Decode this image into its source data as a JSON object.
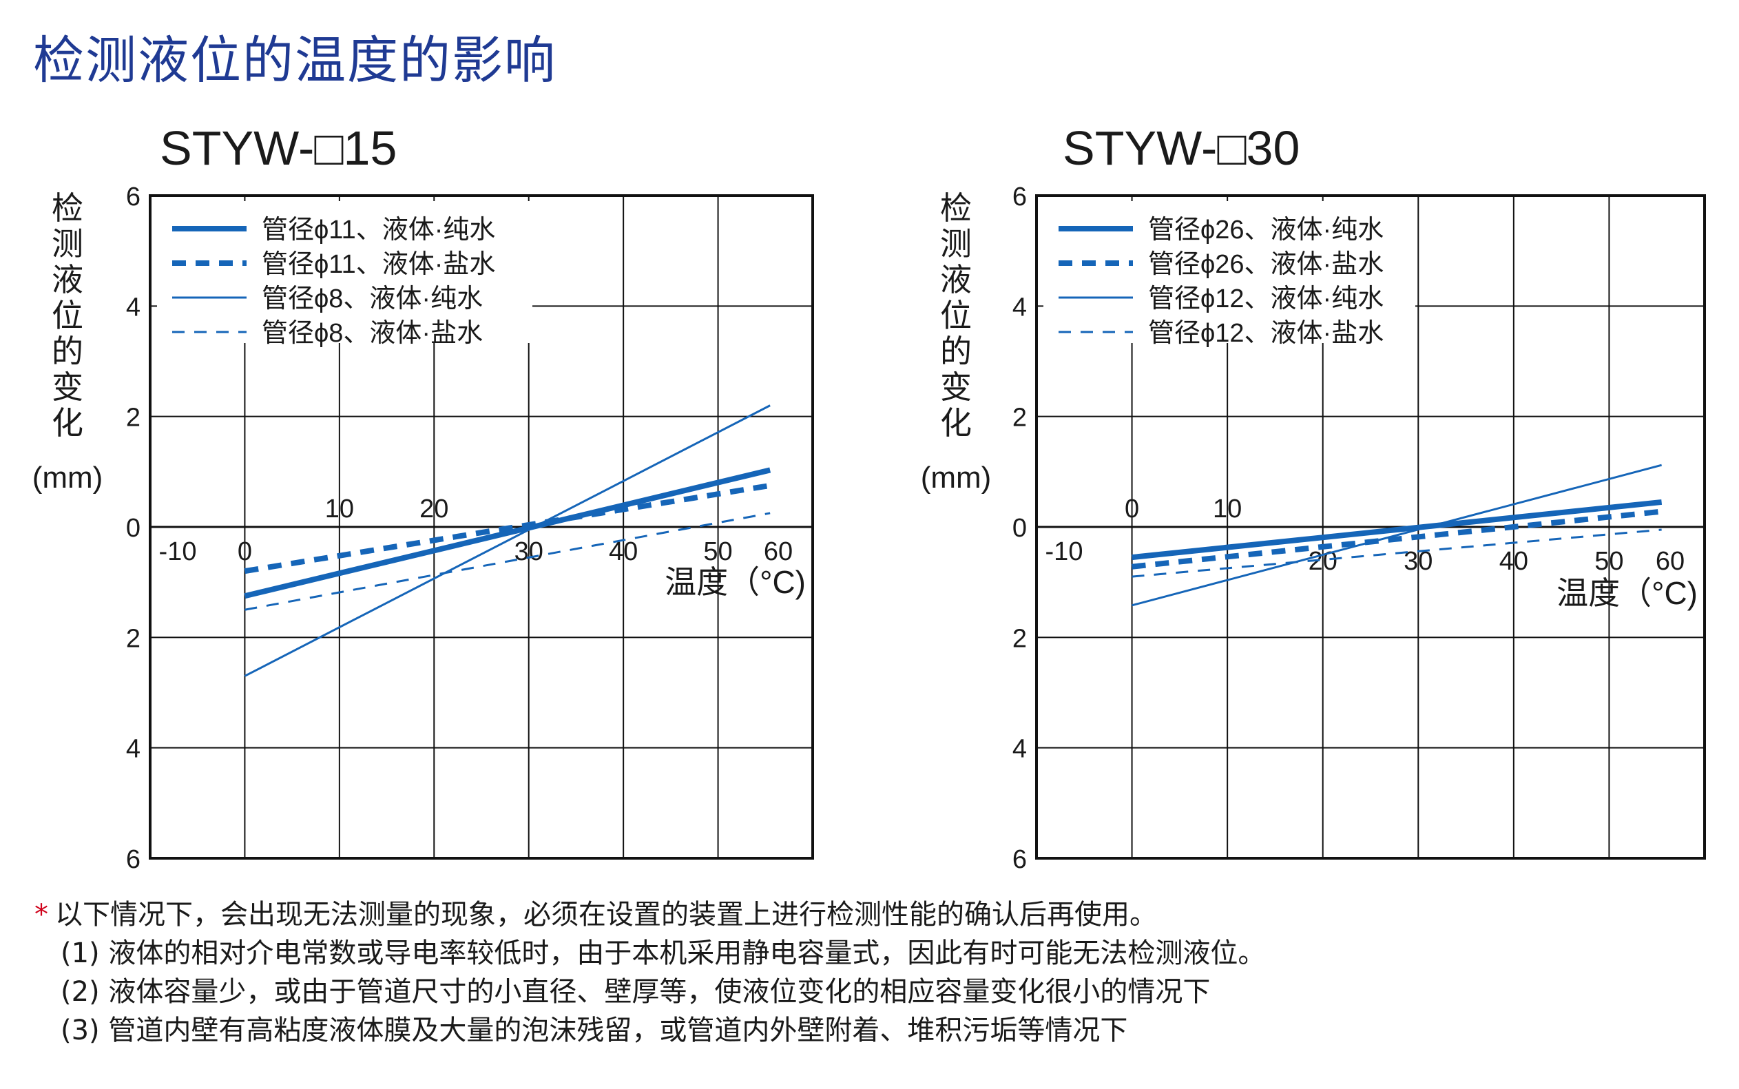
{
  "page_title": "检测液位的温度的影响",
  "chart_data": [
    {
      "type": "line",
      "title": "STYW-□15",
      "ylabel_chars": [
        "检",
        "测",
        "液",
        "位",
        "的",
        "变",
        "化"
      ],
      "yunit": "(mm)",
      "xlabel": "温度（°C)",
      "xlim": [
        -10,
        60
      ],
      "ylim": [
        -6,
        6
      ],
      "y_ticks": [
        "6",
        "4",
        "2",
        "0",
        "2",
        "4",
        "6"
      ],
      "x_ticks_above": [
        "10",
        "20"
      ],
      "x_ticks_below": [
        "-10",
        "0",
        "30",
        "40",
        "50",
        "60"
      ],
      "legend": [
        "管径ϕ11、液体·纯水",
        "管径ϕ11、液体·盐水",
        "管径ϕ8、液体·纯水",
        "管径ϕ8、液体·盐水"
      ],
      "series": [
        {
          "name": "管径ϕ11、液体·纯水",
          "style": "thick-solid",
          "x": [
            0,
            55.5
          ],
          "y": [
            -1.25,
            1.03
          ]
        },
        {
          "name": "管径ϕ11、液体·盐水",
          "style": "thick-dashed",
          "x": [
            0,
            55.5
          ],
          "y": [
            -0.8,
            0.75
          ]
        },
        {
          "name": "管径ϕ8、液体·纯水",
          "style": "thin-solid",
          "x": [
            0,
            55.5
          ],
          "y": [
            -2.7,
            2.2
          ]
        },
        {
          "name": "管径ϕ8、液体·盐水",
          "style": "thin-dashed",
          "x": [
            0,
            55.5
          ],
          "y": [
            -1.5,
            0.25
          ]
        }
      ],
      "grid": true,
      "legend_position": "top-left"
    },
    {
      "type": "line",
      "title": "STYW-□30",
      "ylabel_chars": [
        "检",
        "测",
        "液",
        "位",
        "的",
        "变",
        "化"
      ],
      "yunit": "(mm)",
      "xlabel": "温度（°C)",
      "xlim": [
        -10,
        60
      ],
      "ylim": [
        -6,
        6
      ],
      "y_ticks": [
        "6",
        "4",
        "2",
        "0",
        "2",
        "4",
        "6"
      ],
      "x_ticks_above": [
        "0",
        "10"
      ],
      "x_ticks_below": [
        "-10",
        "20",
        "30",
        "40",
        "50",
        "60"
      ],
      "legend": [
        "管径ϕ26、液体·纯水",
        "管径ϕ26、液体·盐水",
        "管径ϕ12、液体·纯水",
        "管径ϕ12、液体·盐水"
      ],
      "series": [
        {
          "name": "管径ϕ26、液体·纯水",
          "style": "thick-solid",
          "x": [
            0,
            55.5
          ],
          "y": [
            -0.55,
            0.45
          ]
        },
        {
          "name": "管径ϕ26、液体·盐水",
          "style": "thick-dashed",
          "x": [
            0,
            55.5
          ],
          "y": [
            -0.72,
            0.28
          ]
        },
        {
          "name": "管径ϕ12、液体·纯水",
          "style": "thin-solid",
          "x": [
            0,
            55.5
          ],
          "y": [
            -1.42,
            1.12
          ]
        },
        {
          "name": "管径ϕ12、液体·盐水",
          "style": "thin-dashed",
          "x": [
            0,
            55.5
          ],
          "y": [
            -0.9,
            -0.05
          ]
        }
      ],
      "grid": true,
      "legend_position": "top-left"
    }
  ],
  "notes": {
    "intro": "以下情况下，会出现无法测量的现象，必须在设置的装置上进行检测性能的确认后再使用。",
    "star": "*",
    "items": [
      "(1) 液体的相对介电常数或导电率较低时，由于本机采用静电容量式，因此有时可能无法检测液位。",
      "(2) 液体容量少，或由于管道尺寸的小直径、壁厚等，使液位变化的相应容量变化很小的情况下",
      "(3) 管道内壁有高粘度液体膜及大量的泡沫残留，或管道内外壁附着、堆积污垢等情况下"
    ]
  },
  "colors": {
    "title": "#1f3a93",
    "series": "#1565b8",
    "grid": "#111111",
    "star": "#d0021b"
  }
}
